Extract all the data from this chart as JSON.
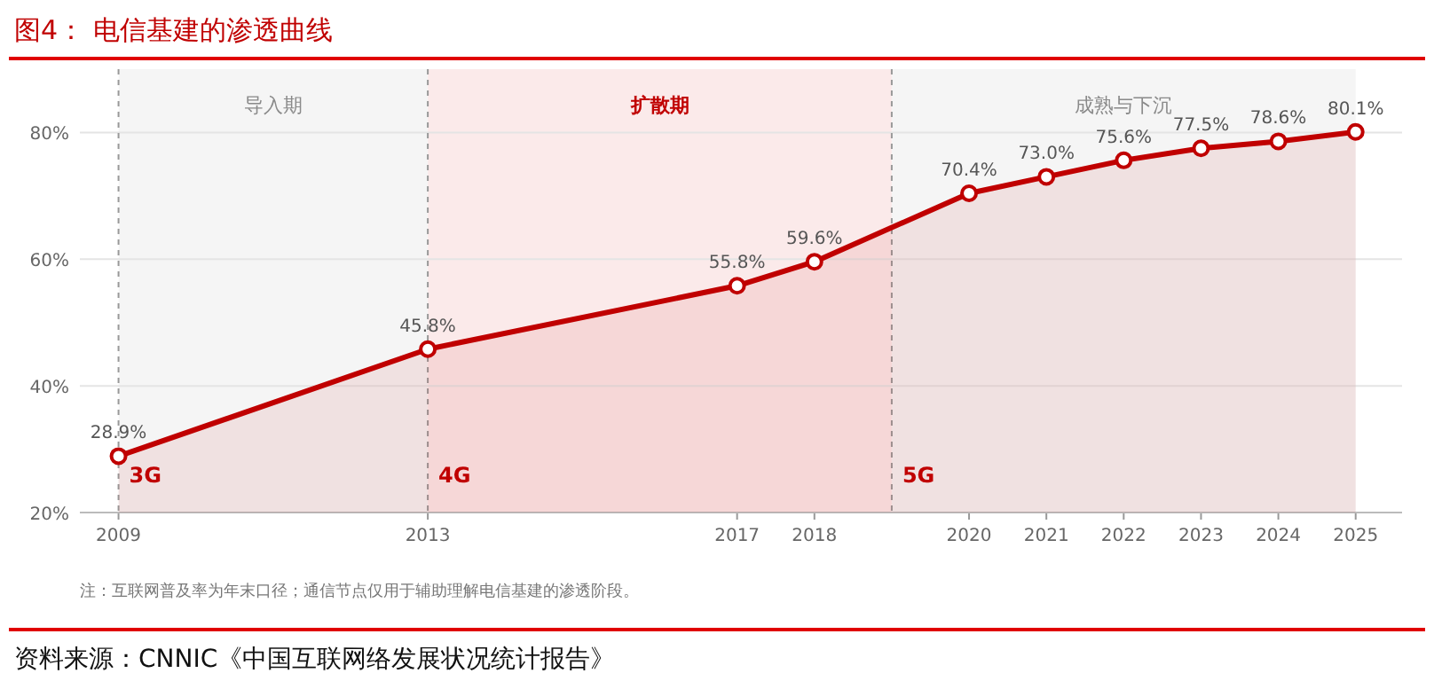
{
  "chart_data": {
    "type": "area",
    "title": "图4：  电信基建的渗透曲线",
    "x": [
      2009,
      2013,
      2017,
      2018,
      2020,
      2021,
      2022,
      2023,
      2024,
      2025
    ],
    "series": [
      {
        "color": "#c00000",
        "values": [
          28.9,
          45.8,
          55.8,
          59.6,
          70.4,
          73.0,
          75.6,
          77.5,
          78.6,
          80.1
        ],
        "value_labels": [
          "28.9%",
          "45.8%",
          "55.8%",
          "59.6%",
          "70.4%",
          "73.0%",
          "75.6%",
          "77.5%",
          "78.6%",
          "80.1%"
        ]
      }
    ],
    "xlim": [
      2008.5,
      2025.6
    ],
    "xticks": [
      2009,
      2013,
      2017,
      2018,
      2020,
      2021,
      2022,
      2023,
      2024,
      2025
    ],
    "ylim": [
      20,
      90
    ],
    "yticks": [
      {
        "value": 20,
        "label": "20%"
      },
      {
        "value": 40,
        "label": "40%"
      },
      {
        "value": 60,
        "label": "60%"
      },
      {
        "value": 80,
        "label": "80%"
      }
    ],
    "grid": "y",
    "marker": "circle",
    "line_style": "solid",
    "bands": [
      {
        "axis": "x",
        "from": 2009,
        "to": 2013,
        "label": "导入期",
        "color": "#f5f5f5"
      },
      {
        "axis": "x",
        "from": 2013,
        "to": 2019,
        "label": "扩散期",
        "color": "#fbeaea"
      },
      {
        "axis": "x",
        "from": 2019,
        "to": 2025,
        "label": "成熟与下沉",
        "color": "#f5f5f5"
      }
    ],
    "ref_lines": [
      {
        "axis": "x",
        "value": 2009,
        "label": "3G",
        "line_style": "dashed"
      },
      {
        "axis": "x",
        "value": 2013,
        "label": "4G",
        "line_style": "dashed"
      },
      {
        "axis": "x",
        "value": 2019,
        "label": "5G",
        "line_style": "dashed"
      }
    ],
    "annotations": [
      "注：互联网普及率为年末口径；通信节点仅用于辅助理解电信基建的渗透阶段。",
      "资料来源：CNNIC《中国互联网络发展状况统计报告》"
    ]
  }
}
